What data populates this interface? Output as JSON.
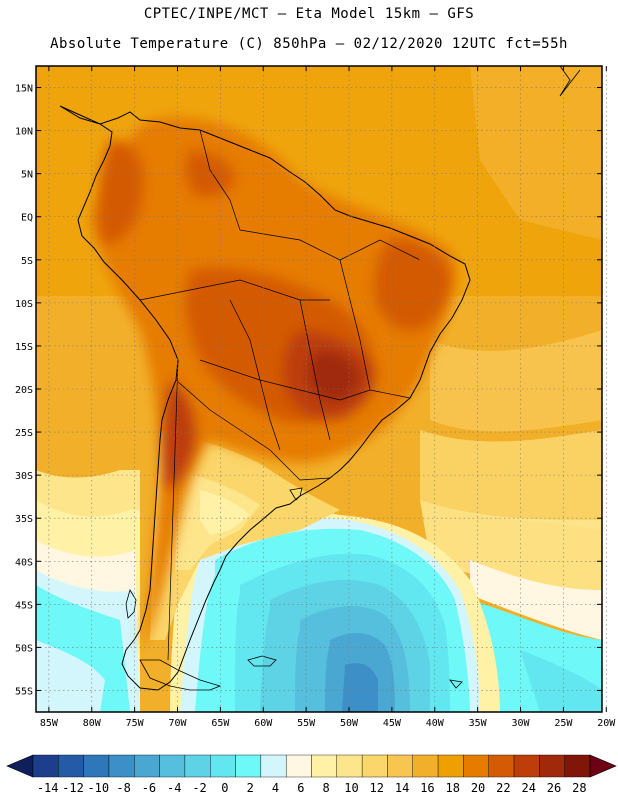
{
  "header": {
    "line1": "CPTEC/INPE/MCT –  Eta Model 15km – GFS",
    "line2": "Absolute Temperature (C) 850hPa – 02/12/2020 12UTC fct=55h"
  },
  "map": {
    "variable": "Absolute Temperature (C) 850hPa",
    "region": "South America",
    "lat_labels": [
      "15N",
      "10N",
      "5N",
      "EQ",
      "5S",
      "10S",
      "15S",
      "20S",
      "25S",
      "30S",
      "35S",
      "40S",
      "45S",
      "50S",
      "55S"
    ],
    "lon_labels": [
      "85W",
      "80W",
      "75W",
      "70W",
      "65W",
      "60W",
      "55W",
      "50W",
      "45W",
      "40W",
      "35W",
      "30W",
      "25W",
      "20W"
    ],
    "lat_range": [
      17.5,
      -57.5
    ],
    "lon_range": [
      -86.5,
      -20.5
    ]
  },
  "colorbar": {
    "labels": [
      "-14",
      "-12",
      "-10",
      "-8",
      "-6",
      "-4",
      "-2",
      "0",
      "2",
      "4",
      "6",
      "8",
      "10",
      "12",
      "14",
      "16",
      "18",
      "20",
      "22",
      "24",
      "26",
      "28"
    ],
    "colors": [
      "#1c3e8c",
      "#245aa6",
      "#2f77b8",
      "#3d8fc8",
      "#4aa7d2",
      "#55bfdd",
      "#5fd3e6",
      "#62e6f0",
      "#6ef8f8",
      "#d2f6fb",
      "#fff7e2",
      "#fff2a6",
      "#fde58c",
      "#fbd66a",
      "#f7c550",
      "#f2b02a",
      "#eea000",
      "#e67b00",
      "#d45a05",
      "#bd3e08",
      "#a0290c",
      "#801608"
    ],
    "left_arrow_color": "#0f1f5c",
    "right_arrow_color": "#6e0016"
  }
}
